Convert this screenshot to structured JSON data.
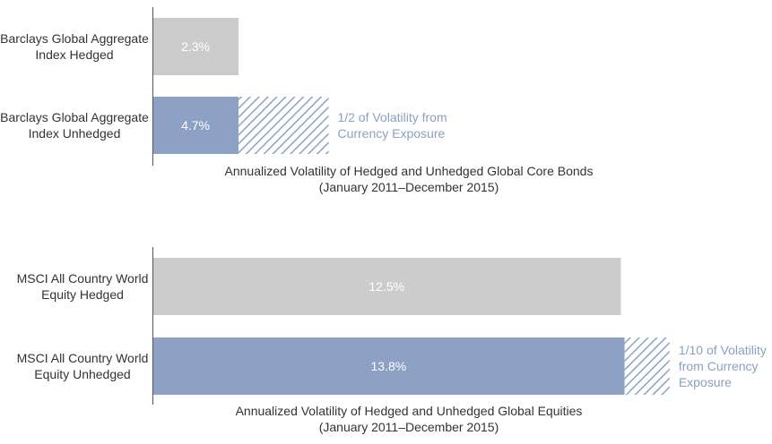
{
  "chart_data": [
    {
      "type": "bar",
      "orientation": "horizontal",
      "categories": [
        [
          "Barclays Global Aggregate",
          "Index Hedged"
        ],
        [
          "Barclays Global Aggregate",
          "Index Unhedged"
        ]
      ],
      "values": [
        2.3,
        4.7
      ],
      "value_labels": [
        "2.3%",
        "4.7%"
      ],
      "currency_portion": [
        0,
        2.4
      ],
      "annotation": [
        "1/2 of Volatility from",
        "Currency Exposure"
      ],
      "caption": [
        "Annualized Volatility of Hedged and Unhedged Global Core Bonds",
        "(January 2011–December 2015)"
      ],
      "colors": [
        "#cccccc",
        "#8ca1c4"
      ],
      "xlim": [
        0,
        15
      ]
    },
    {
      "type": "bar",
      "orientation": "horizontal",
      "categories": [
        [
          "MSCI All Country World",
          "Equity Hedged"
        ],
        [
          "MSCI All Country World",
          "Equity Unhedged"
        ]
      ],
      "values": [
        12.5,
        13.8
      ],
      "value_labels": [
        "12.5%",
        "13.8%"
      ],
      "currency_portion": [
        0,
        1.2
      ],
      "annotation": [
        "1/10 of Volatility",
        "from Currency",
        "Exposure"
      ],
      "caption": [
        "Annualized Volatility of Hedged and Unhedged Global Equities",
        "(January 2011–December 2015)"
      ],
      "colors": [
        "#cccccc",
        "#8ca1c4"
      ],
      "xlim": [
        0,
        15
      ]
    }
  ]
}
